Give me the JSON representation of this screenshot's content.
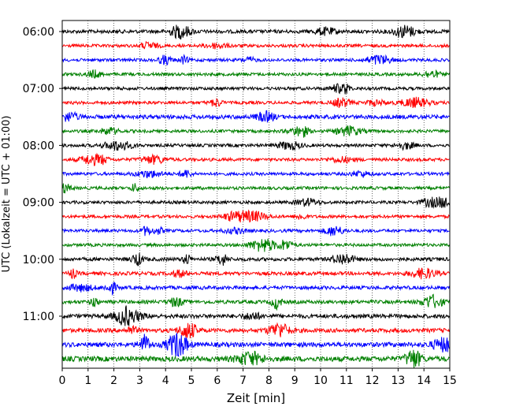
{
  "chart_data": {
    "type": "line",
    "title": "",
    "xlabel": "Zeit  [min]",
    "ylabel": "UTC (Lokalzeit = UTC + 01:00)",
    "xlim": [
      0,
      15
    ],
    "x_ticks": [
      "0",
      "1",
      "2",
      "3",
      "4",
      "5",
      "6",
      "7",
      "8",
      "9",
      "10",
      "11",
      "12",
      "13",
      "14",
      "15"
    ],
    "y_tick_labels": [
      "06:00",
      "07:00",
      "08:00",
      "09:00",
      "10:00",
      "11:00"
    ],
    "grid": "vertical dotted lines at each minute",
    "series_colors": [
      "#000000",
      "#ff0000",
      "#0000ff",
      "#008000"
    ],
    "traces": [
      {
        "start": "06:00",
        "color": "#000000",
        "amplitude": 0.7
      },
      {
        "start": "06:15",
        "color": "#ff0000",
        "amplitude": 0.6
      },
      {
        "start": "06:30",
        "color": "#0000ff",
        "amplitude": 0.6
      },
      {
        "start": "06:45",
        "color": "#008000",
        "amplitude": 0.6
      },
      {
        "start": "07:00",
        "color": "#000000",
        "amplitude": 0.6
      },
      {
        "start": "07:15",
        "color": "#ff0000",
        "amplitude": 0.6
      },
      {
        "start": "07:30",
        "color": "#0000ff",
        "amplitude": 0.8
      },
      {
        "start": "07:45",
        "color": "#008000",
        "amplitude": 0.6
      },
      {
        "start": "08:00",
        "color": "#000000",
        "amplitude": 0.6
      },
      {
        "start": "08:15",
        "color": "#ff0000",
        "amplitude": 0.6
      },
      {
        "start": "08:30",
        "color": "#0000ff",
        "amplitude": 0.6
      },
      {
        "start": "08:45",
        "color": "#008000",
        "amplitude": 0.6
      },
      {
        "start": "09:00",
        "color": "#000000",
        "amplitude": 0.6
      },
      {
        "start": "09:15",
        "color": "#ff0000",
        "amplitude": 0.6
      },
      {
        "start": "09:30",
        "color": "#0000ff",
        "amplitude": 0.6
      },
      {
        "start": "09:45",
        "color": "#008000",
        "amplitude": 0.6
      },
      {
        "start": "10:00",
        "color": "#000000",
        "amplitude": 0.7
      },
      {
        "start": "10:15",
        "color": "#ff0000",
        "amplitude": 0.7
      },
      {
        "start": "10:30",
        "color": "#0000ff",
        "amplitude": 0.7
      },
      {
        "start": "10:45",
        "color": "#008000",
        "amplitude": 0.7
      },
      {
        "start": "11:00",
        "color": "#000000",
        "amplitude": 0.8
      },
      {
        "start": "11:15",
        "color": "#ff0000",
        "amplitude": 0.8
      },
      {
        "start": "11:30",
        "color": "#0000ff",
        "amplitude": 0.9
      },
      {
        "start": "11:45",
        "color": "#008000",
        "amplitude": 1.0
      }
    ]
  }
}
